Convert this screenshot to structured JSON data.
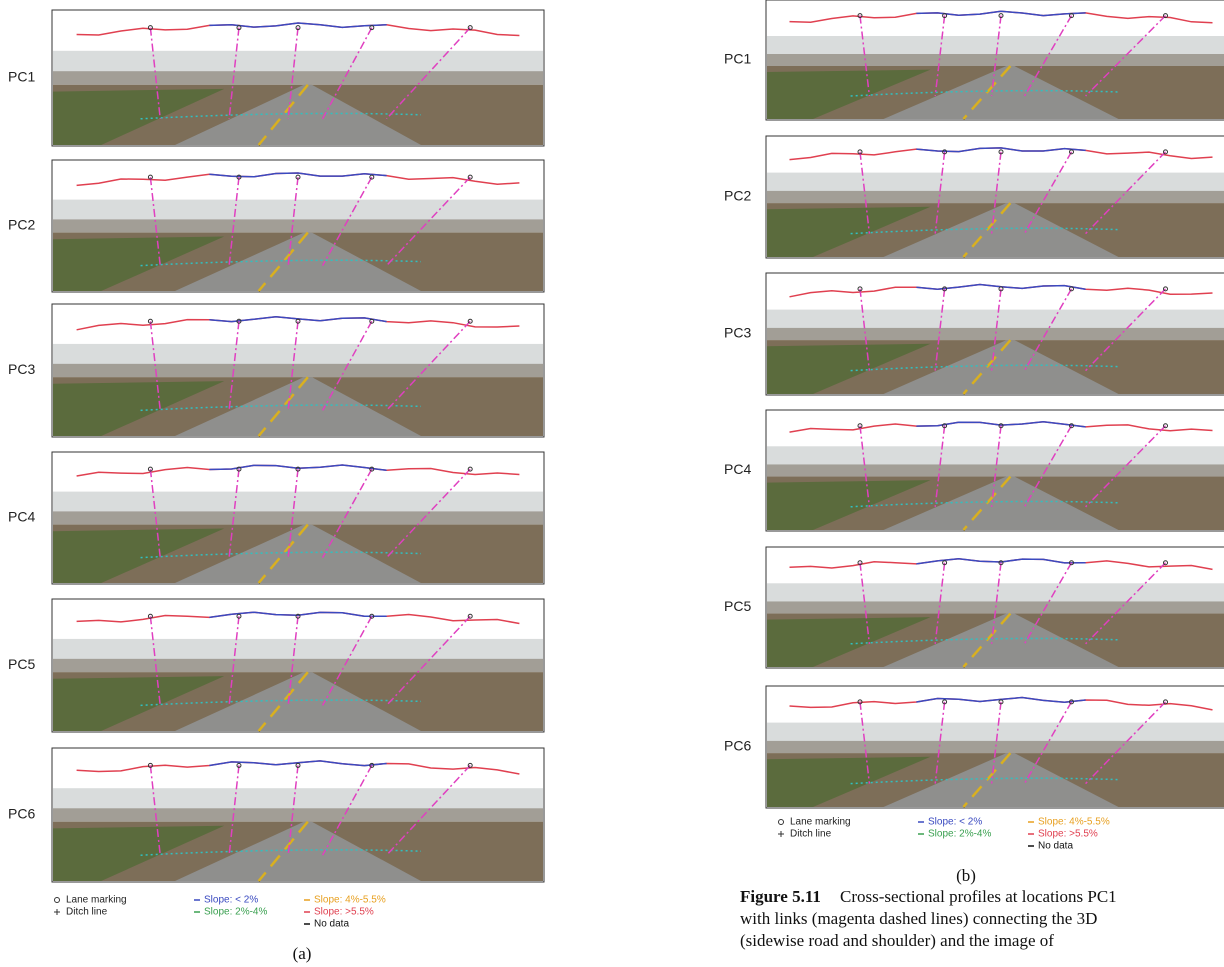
{
  "panels": [
    {
      "rows": [
        "PC1",
        "PC2",
        "PC3",
        "PC4",
        "PC5",
        "PC6"
      ],
      "legend": {
        "lane": "Lane marking",
        "ditch": "Ditch line",
        "s1": "Slope: < 2%",
        "s2": "Slope: 2%-4%",
        "s3": "Slope: 4%-5.5%",
        "s4": "Slope: >5.5%",
        "nodata": "No data"
      },
      "label": "(a)"
    },
    {
      "rows": [
        "PC1",
        "PC2",
        "PC3",
        "PC4",
        "PC5",
        "PC6"
      ],
      "legend": {
        "lane": "Lane marking",
        "ditch": "Ditch line",
        "s1": "Slope: < 2%",
        "s2": "Slope: 2%-4%",
        "s3": "Slope: 4%-5.5%",
        "s4": "Slope: >5.5%",
        "nodata": "No data"
      },
      "label": "(b)"
    }
  ],
  "caption": {
    "number": "Figure 5.11",
    "lines": [
      "Cross-sectional profiles at locations PC1",
      "with links (magenta dashed lines) connecting the 3D",
      "(sidewise road and shoulder) and the image of"
    ]
  }
}
